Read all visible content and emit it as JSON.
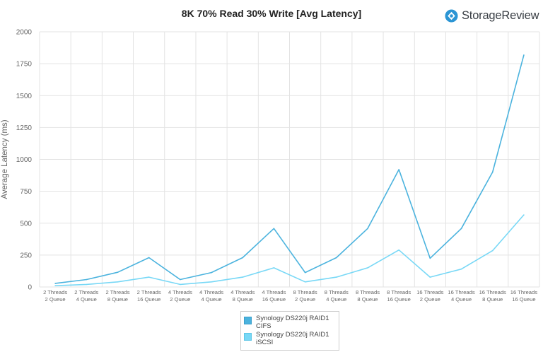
{
  "header": {
    "brand_name": "StorageReview",
    "brand_icon": "storagereview-logo-icon",
    "brand_color": "#2b95d4"
  },
  "chart_data": {
    "type": "line",
    "title": "8K 70% Read 30% Write [Avg Latency]",
    "xlabel": "",
    "ylabel": "Average Latency (ms)",
    "ylim": [
      0,
      2000
    ],
    "yticks": [
      "0",
      "250",
      "500",
      "750",
      "1000",
      "1250",
      "1500",
      "1750",
      "2000"
    ],
    "grid": true,
    "legend_position": "bottom",
    "categories": [
      [
        "2 Threads",
        "2 Queue"
      ],
      [
        "2 Threads",
        "4 Queue"
      ],
      [
        "2 Threads",
        "8 Queue"
      ],
      [
        "2 Threads",
        "16 Queue"
      ],
      [
        "4 Threads",
        "2 Queue"
      ],
      [
        "4 Threads",
        "4 Queue"
      ],
      [
        "4 Threads",
        "8 Queue"
      ],
      [
        "4 Threads",
        "16 Queue"
      ],
      [
        "8 Threads",
        "2 Queue"
      ],
      [
        "8 Threads",
        "4 Queue"
      ],
      [
        "8 Threads",
        "8 Queue"
      ],
      [
        "8 Threads",
        "16 Queue"
      ],
      [
        "16 Threads",
        "2 Queue"
      ],
      [
        "16 Threads",
        "4 Queue"
      ],
      [
        "16 Threads",
        "8 Queue"
      ],
      [
        "16 Threads",
        "16 Queue"
      ]
    ],
    "series": [
      {
        "name": "Synology DS220j RAID1 CIFS",
        "color": "#4bb3de",
        "values": [
          28,
          58,
          115,
          230,
          58,
          113,
          230,
          458,
          113,
          230,
          458,
          920,
          225,
          458,
          900,
          1818
        ]
      },
      {
        "name": "Synology DS220j RAID1 iSCSI",
        "color": "#78d8f6",
        "values": [
          10,
          20,
          40,
          77,
          20,
          40,
          77,
          150,
          40,
          77,
          150,
          290,
          77,
          140,
          285,
          565
        ]
      }
    ]
  }
}
